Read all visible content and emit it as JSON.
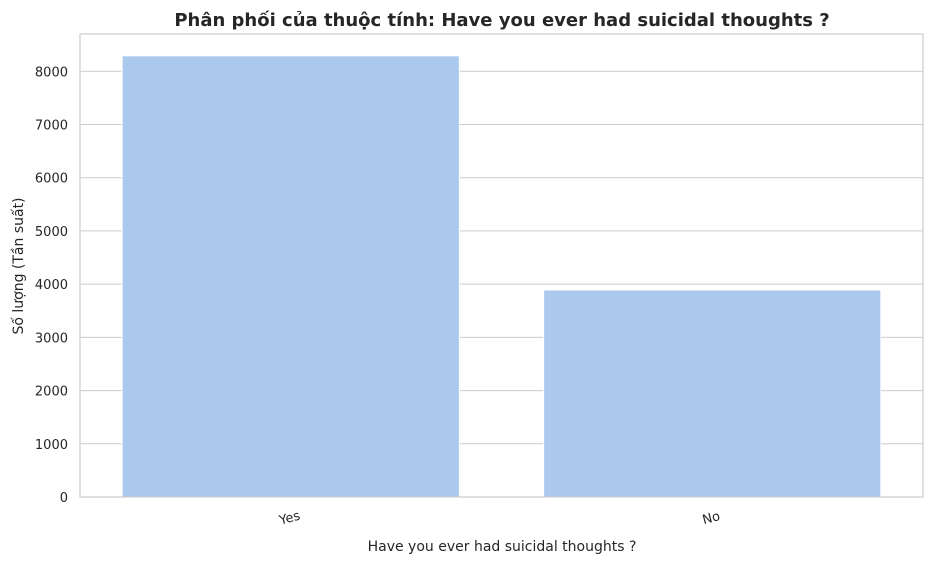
{
  "chart_data": {
    "type": "bar",
    "title": "Phân phối của thuộc tính: Have you ever had suicidal thoughts ?",
    "xlabel": "Have you ever had suicidal thoughts ?",
    "ylabel": "Số lượng (Tần suất)",
    "categories": [
      "Yes",
      "No"
    ],
    "values": [
      8290,
      3890
    ],
    "ylim": [
      0,
      8700
    ],
    "yticks": [
      0,
      1000,
      2000,
      3000,
      4000,
      5000,
      6000,
      7000,
      8000
    ],
    "grid": "horizontal",
    "colors": {
      "bar": "#abc9ed",
      "grid": "#cccccc",
      "text": "#262626"
    }
  }
}
